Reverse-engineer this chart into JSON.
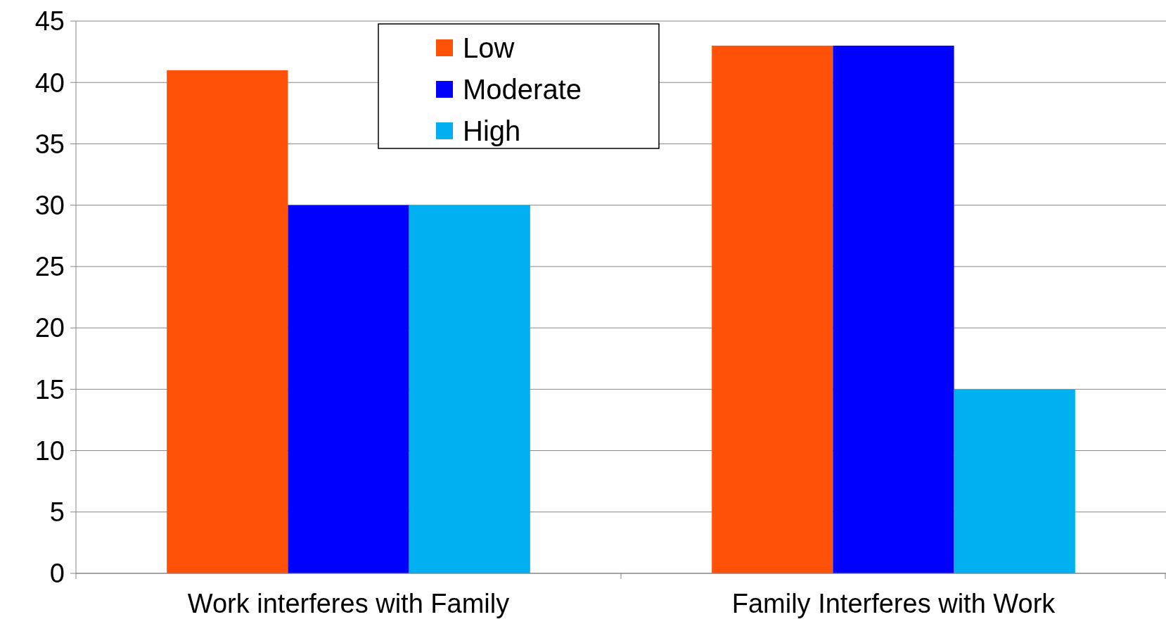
{
  "chart_data": {
    "type": "bar",
    "categories": [
      "Work interferes with Family",
      "Family Interferes with Work"
    ],
    "series": [
      {
        "name": "Low",
        "color": "#ff5108",
        "values": [
          41,
          43
        ]
      },
      {
        "name": "Moderate",
        "color": "#0000ff",
        "values": [
          30,
          43
        ]
      },
      {
        "name": "High",
        "color": "#00b0f0",
        "values": [
          30,
          15
        ]
      }
    ],
    "ylim": [
      0,
      45
    ],
    "yticks": [
      0,
      5,
      10,
      15,
      20,
      25,
      30,
      35,
      40,
      45
    ],
    "grid": "y",
    "legend": "top"
  }
}
